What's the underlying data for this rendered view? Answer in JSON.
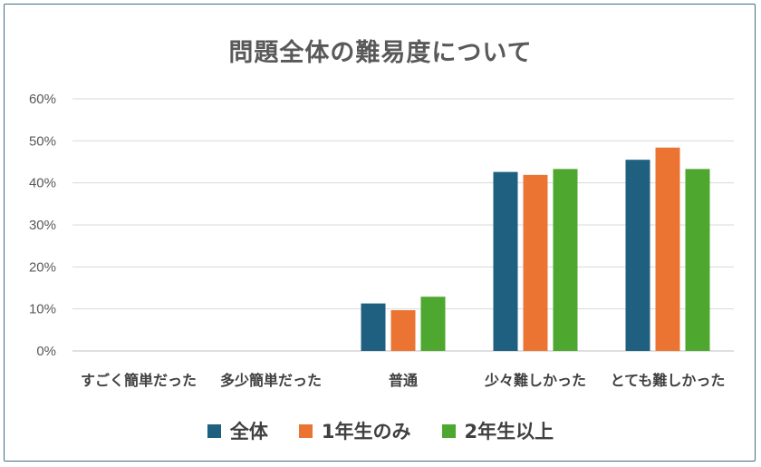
{
  "chart_data": {
    "type": "bar",
    "title": "問題全体の難易度について",
    "categories": [
      "すごく簡単だった",
      "多少簡単だった",
      "普通",
      "少々難しかった",
      "とても難しかった"
    ],
    "series": [
      {
        "name": "全体",
        "color": "#1f5f7f",
        "values": [
          0,
          0,
          11.3,
          42.6,
          45.5
        ]
      },
      {
        "name": "1年生のみ",
        "color": "#ec7432",
        "values": [
          0,
          0,
          9.7,
          41.9,
          48.4
        ]
      },
      {
        "name": "2年生以上",
        "color": "#4ea72e",
        "values": [
          0,
          0,
          12.9,
          43.3,
          43.3
        ]
      }
    ],
    "ylim": [
      0,
      60
    ],
    "yticks": [
      "0%",
      "10%",
      "20%",
      "30%",
      "40%",
      "50%",
      "60%"
    ],
    "grid": true,
    "legend_position": "bottom"
  }
}
